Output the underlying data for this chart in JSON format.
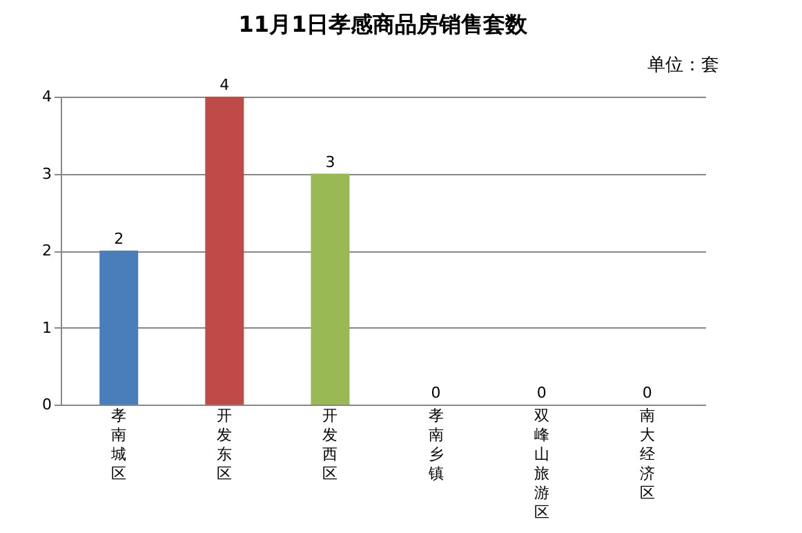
{
  "chart_data": {
    "type": "bar",
    "title": "11月1日孝感商品房销售套数",
    "annotations": [
      "单位：套"
    ],
    "categories": [
      "孝南城区",
      "开发东区",
      "开发西区",
      "孝南乡镇",
      "双峰山旅游区",
      "南大经济区"
    ],
    "values": [
      2,
      4,
      3,
      0,
      0,
      0
    ],
    "colors": [
      "#4a7ebb",
      "#be4b48",
      "#98b954",
      "#7d5fa0",
      "#46aac5",
      "#f79646"
    ],
    "ylim": [
      0,
      4
    ],
    "yticks": [
      0,
      1,
      2,
      3,
      4
    ],
    "grid": true,
    "data_labels": true
  }
}
